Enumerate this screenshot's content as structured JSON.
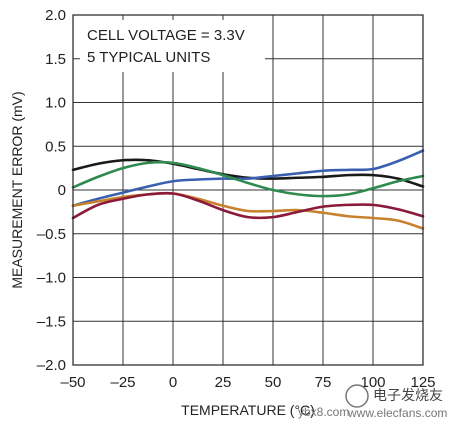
{
  "chart_data": {
    "type": "line",
    "xlabel": "TEMPERATURE (°C)",
    "ylabel": "MEASUREMENT ERROR (mV)",
    "xlim": [
      -50,
      125
    ],
    "ylim": [
      -2.0,
      2.0
    ],
    "xticks": [
      -50,
      -25,
      0,
      25,
      50,
      75,
      100,
      125
    ],
    "yticks": [
      2.0,
      1.5,
      1.0,
      0.5,
      0,
      -0.5,
      -1.0,
      -1.5,
      -2.0
    ],
    "xtick_labels": [
      "–50",
      "–25",
      "0",
      "25",
      "50",
      "75",
      "100",
      "125"
    ],
    "ytick_labels": [
      "2.0",
      "1.5",
      "1.0",
      "0.5",
      "0",
      "–0.5",
      "–1.0",
      "–1.5",
      "–2.0"
    ],
    "grid": true,
    "annotations": [
      "CELL VOLTAGE = 3.3V",
      "5 TYPICAL UNITS"
    ],
    "series": [
      {
        "color": "#1a1a1a",
        "x": [
          -50,
          -37.5,
          -25,
          -12.5,
          0,
          12.5,
          25,
          37.5,
          50,
          62.5,
          75,
          87.5,
          100,
          112.5,
          125
        ],
        "y": [
          0.23,
          0.3,
          0.34,
          0.34,
          0.3,
          0.24,
          0.18,
          0.14,
          0.13,
          0.14,
          0.15,
          0.17,
          0.17,
          0.13,
          0.04
        ]
      },
      {
        "color": "#3a5fb0",
        "x": [
          -50,
          -37.5,
          -25,
          -12.5,
          0,
          12.5,
          25,
          37.5,
          50,
          62.5,
          75,
          87.5,
          100,
          112.5,
          125
        ],
        "y": [
          -0.18,
          -0.1,
          -0.03,
          0.04,
          0.1,
          0.12,
          0.13,
          0.13,
          0.16,
          0.19,
          0.22,
          0.23,
          0.24,
          0.33,
          0.45
        ]
      },
      {
        "color": "#2f8a4e",
        "x": [
          -50,
          -37.5,
          -25,
          -12.5,
          0,
          12.5,
          25,
          37.5,
          50,
          62.5,
          75,
          87.5,
          100,
          112.5,
          125
        ],
        "y": [
          0.03,
          0.15,
          0.25,
          0.31,
          0.31,
          0.25,
          0.17,
          0.08,
          0.0,
          -0.05,
          -0.07,
          -0.05,
          0.02,
          0.1,
          0.16
        ]
      },
      {
        "color": "#c8822e",
        "x": [
          -50,
          -37.5,
          -25,
          -12.5,
          0,
          12.5,
          25,
          37.5,
          50,
          62.5,
          75,
          87.5,
          100,
          112.5,
          125
        ],
        "y": [
          -0.18,
          -0.13,
          -0.08,
          -0.05,
          -0.04,
          -0.1,
          -0.18,
          -0.24,
          -0.24,
          -0.23,
          -0.26,
          -0.3,
          -0.32,
          -0.35,
          -0.44
        ]
      },
      {
        "color": "#8b1a3a",
        "x": [
          -50,
          -37.5,
          -25,
          -12.5,
          0,
          12.5,
          25,
          37.5,
          50,
          62.5,
          75,
          87.5,
          100,
          112.5,
          125
        ],
        "y": [
          -0.32,
          -0.17,
          -0.1,
          -0.05,
          -0.04,
          -0.12,
          -0.23,
          -0.31,
          -0.31,
          -0.25,
          -0.19,
          -0.17,
          -0.17,
          -0.22,
          -0.3
        ]
      }
    ]
  },
  "watermark": {
    "left": "ybx8.com",
    "right_title": "电子发烧友",
    "right_url": "www.elecfans.com"
  }
}
